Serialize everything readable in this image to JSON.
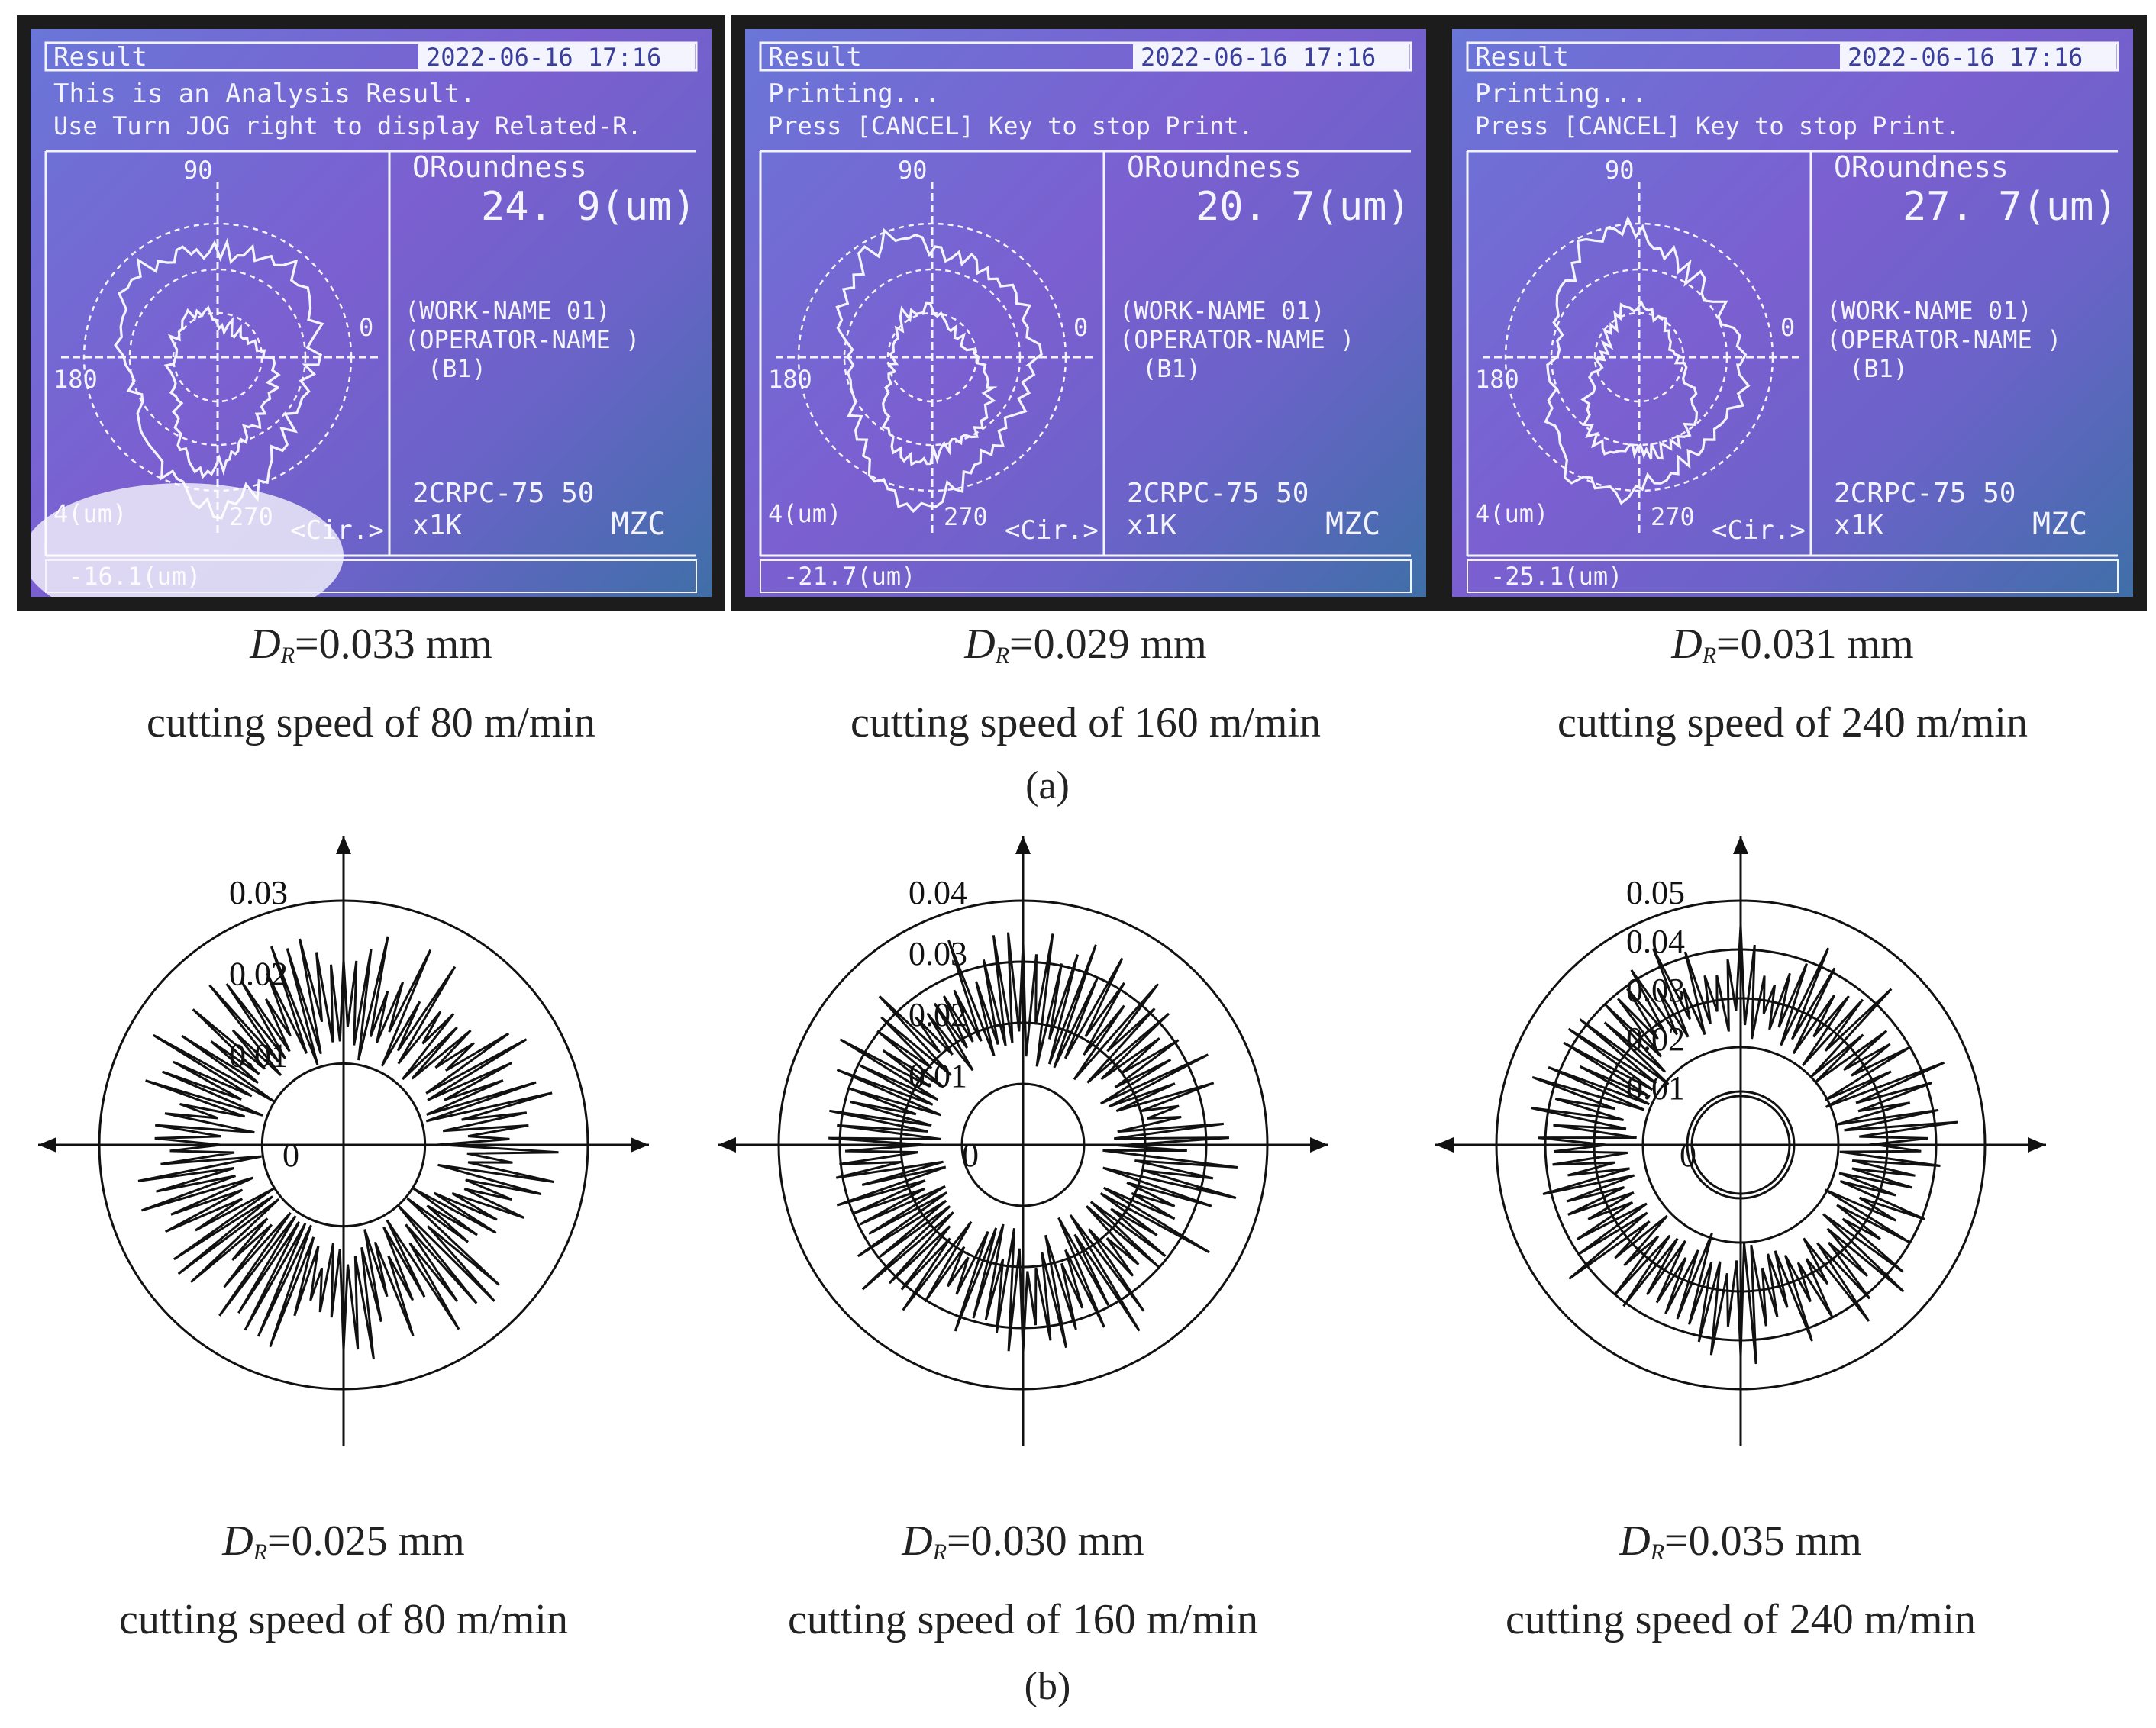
{
  "part_a": {
    "label": "(a)",
    "screens": [
      {
        "header_left": "Result",
        "header_date": "2022-06-16 17:16",
        "message1": "This is an Analysis Result.",
        "message2": "Use Turn JOG right to display Related-R.",
        "roundness_label": "ORoundness",
        "roundness_value": "24. 9(um)",
        "work_name": "(WORK-NAME      01)",
        "operator_name": "(OPERATOR-NAME    )",
        "op_code": "(B1)",
        "filter": "2CRPC-75  50",
        "mag": "x1K",
        "method": "MZC",
        "angle_90": "90",
        "angle_0": "0",
        "angle_180": "180",
        "angle_270": "270",
        "scale": "4(um)",
        "cir": "<Cir.>",
        "footer": "-16.1(um)",
        "caption_value": "=0.033 mm",
        "caption_speed": "cutting speed of 80 m/min"
      },
      {
        "header_left": "Result",
        "header_date": "2022-06-16 17:16",
        "message1": "Printing...",
        "message2": "Press [CANCEL] Key to stop Print.",
        "roundness_label": "ORoundness",
        "roundness_value": "20. 7(um)",
        "work_name": "(WORK-NAME      01)",
        "operator_name": "(OPERATOR-NAME    )",
        "op_code": "(B1)",
        "filter": "2CRPC-75  50",
        "mag": "x1K",
        "method": "MZC",
        "angle_90": "90",
        "angle_0": "0",
        "angle_180": "180",
        "angle_270": "270",
        "scale": "4(um)",
        "cir": "<Cir.>",
        "footer": "-21.7(um)",
        "caption_value": "=0.029 mm",
        "caption_speed": "cutting speed of 160 m/min"
      },
      {
        "header_left": "Result",
        "header_date": "2022-06-16 17:16",
        "message1": "Printing...",
        "message2": "Press [CANCEL] Key to stop Print.",
        "roundness_label": "ORoundness",
        "roundness_value": "27. 7(um)",
        "work_name": "(WORK-NAME      01)",
        "operator_name": "(OPERATOR-NAME    )",
        "op_code": "(B1)",
        "filter": "2CRPC-75  50",
        "mag": "x1K",
        "method": "MZC",
        "angle_90": "90",
        "angle_0": "0",
        "angle_180": "180",
        "angle_270": "270",
        "scale": "4(um)",
        "cir": "<Cir.>",
        "footer": "-25.1(um)",
        "caption_value": "=0.031 mm",
        "caption_speed": "cutting speed of 240 m/min"
      }
    ]
  },
  "part_b": {
    "label": "(b)",
    "caption_symbol": "D",
    "caption_sub": "R",
    "plots": [
      {
        "caption_value": "=0.025 mm",
        "caption_speed": "cutting speed of 80 m/min"
      },
      {
        "caption_value": "=0.030 mm",
        "caption_speed": "cutting speed of 160 m/min"
      },
      {
        "caption_value": "=0.035 mm",
        "caption_speed": "cutting speed of 240 m/min"
      }
    ]
  },
  "chart_data": [
    {
      "type": "polar",
      "radial_ticks": [
        "0",
        "0.01",
        "0.02",
        "0.03"
      ],
      "rlim": [
        0,
        0.03
      ],
      "inner_band": [
        0.01,
        0.027
      ],
      "series": [
        {
          "values_r_profile": [
            0.016,
            0.028,
            0.013,
            0.026,
            0.017,
            0.029,
            0.012,
            0.025,
            0.018,
            0.027,
            0.014,
            0.028
          ]
        }
      ]
    },
    {
      "type": "polar",
      "radial_ticks": [
        "0",
        "0.01",
        "0.02",
        "0.03",
        "0.04"
      ],
      "rlim": [
        0,
        0.04
      ],
      "inner_band": [
        0.013,
        0.036
      ],
      "series": [
        {
          "values_r_profile": [
            0.018,
            0.034,
            0.015,
            0.032,
            0.021,
            0.036,
            0.014,
            0.03,
            0.019,
            0.033,
            0.016,
            0.035
          ]
        }
      ]
    },
    {
      "type": "polar",
      "radial_ticks": [
        "0",
        "0.01",
        "0.02",
        "0.03",
        "0.04",
        "0.05"
      ],
      "rlim": [
        0,
        0.05
      ],
      "inner_band": [
        0.019,
        0.045
      ],
      "series": [
        {
          "values_r_profile": [
            0.024,
            0.043,
            0.021,
            0.04,
            0.027,
            0.046,
            0.02,
            0.038,
            0.025,
            0.044,
            0.022,
            0.041
          ]
        }
      ]
    }
  ]
}
